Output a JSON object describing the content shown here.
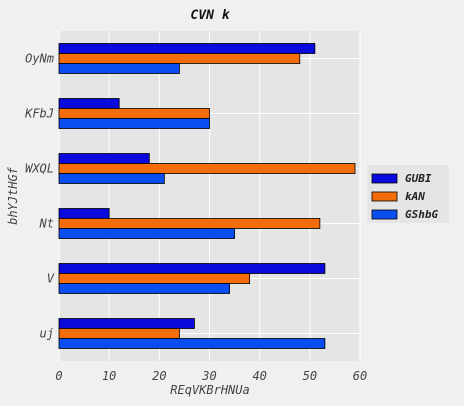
{
  "chart_data": {
    "type": "bar",
    "orientation": "horizontal",
    "title": "CVN k",
    "xlabel": "REqVKBrHNUa",
    "ylabel": "bhYJtHGf",
    "categories": [
      "uj",
      "V",
      "Nt",
      "WXQL",
      "KFbJ",
      "OyNm"
    ],
    "series": [
      {
        "name": "GUBI",
        "color": "#0a0adc",
        "values": [
          27,
          53,
          10,
          18,
          12,
          51
        ]
      },
      {
        "name": "kAN",
        "color": "#f56d0a",
        "values": [
          24,
          38,
          52,
          59,
          30,
          48
        ]
      },
      {
        "name": "GShbG",
        "color": "#0a4df0",
        "values": [
          53,
          34,
          35,
          21,
          30,
          24
        ]
      }
    ],
    "xlim": [
      0,
      60
    ],
    "xticks": [
      "0",
      "10",
      "20",
      "30",
      "40",
      "50",
      "60"
    ],
    "grid": true,
    "legend_position": "center-right"
  }
}
